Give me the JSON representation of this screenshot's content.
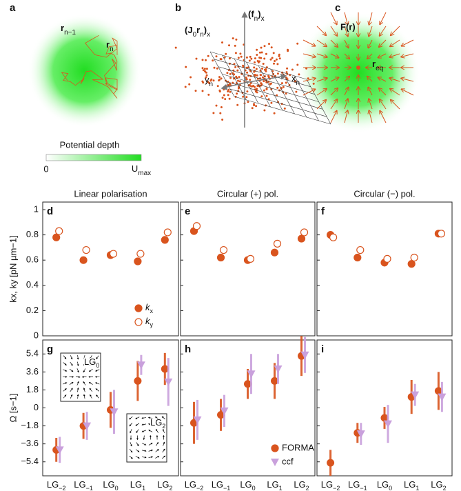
{
  "panel_a": {
    "letter": "a",
    "prev": {
      "main": "r",
      "sub": "n−1"
    },
    "curr": {
      "main": "r",
      "sub": "n"
    },
    "colorbar": {
      "title": "Potential depth",
      "low": "0",
      "high": {
        "main": "U",
        "sub": "max"
      }
    }
  },
  "panel_b": {
    "letter": "b",
    "jr": {
      "main": "(J",
      "sub": "0",
      "main2": "r",
      "sub2": "n",
      "main3": ")",
      "sub3": "x"
    },
    "f": {
      "main": "(f",
      "sub": "n",
      "main2": ")",
      "sub2": "x"
    },
    "y": {
      "main": "y",
      "sub": "n"
    },
    "x": {
      "main": "x",
      "sub": "n"
    }
  },
  "panel_c": {
    "letter": "c",
    "force": "F(r)",
    "eq": {
      "main": "r",
      "sub": "eq"
    }
  },
  "chart_data": [
    {
      "type": "scatter",
      "letter": "d",
      "title": "Linear polarisation",
      "ylabel": "kx, ky [pN µm−1]",
      "ylim": [
        0,
        1.06
      ],
      "yticks": [
        0,
        0.2,
        0.4,
        0.6,
        0.8,
        1
      ],
      "legend": "lower right",
      "series": [
        {
          "name": "kx",
          "color": "#d9541e",
          "marker": "filled",
          "values": [
            0.78,
            0.6,
            0.64,
            0.59,
            0.76
          ]
        },
        {
          "name": "ky",
          "color": "#d9541e",
          "marker": "open",
          "values": [
            0.83,
            0.68,
            0.65,
            0.65,
            0.82
          ]
        }
      ]
    },
    {
      "type": "scatter",
      "letter": "e",
      "title": "Circular (+) pol.",
      "ylim": [
        0,
        1.06
      ],
      "series": [
        {
          "name": "kx",
          "color": "#d9541e",
          "marker": "filled",
          "values": [
            0.83,
            0.62,
            0.6,
            0.66,
            0.77
          ]
        },
        {
          "name": "ky",
          "color": "#d9541e",
          "marker": "open",
          "values": [
            0.87,
            0.68,
            0.61,
            0.73,
            0.82
          ]
        }
      ]
    },
    {
      "type": "scatter",
      "letter": "f",
      "title": "Circular (−) pol.",
      "ylim": [
        0,
        1.06
      ],
      "series": [
        {
          "name": "kx",
          "color": "#d9541e",
          "marker": "filled",
          "values": [
            0.8,
            0.62,
            0.58,
            0.57,
            0.81
          ]
        },
        {
          "name": "ky",
          "color": "#d9541e",
          "marker": "open",
          "values": [
            0.78,
            0.68,
            0.61,
            0.62,
            0.81
          ]
        }
      ]
    },
    {
      "type": "errorbar",
      "letter": "g",
      "ylabel": "Ω [s−1]",
      "categories": [
        "LG−2",
        "LG−1",
        "LG0",
        "LG1",
        "LG2"
      ],
      "ylim": [
        -6.8,
        6.8
      ],
      "yticks": [
        {
          "value": -5.4,
          "label": "−5.4"
        },
        {
          "value": -3.6,
          "label": "−3.6"
        },
        {
          "value": -1.8,
          "label": "−1.8"
        },
        0,
        1.8,
        3.6,
        5.4
      ],
      "legend": "lower right",
      "insets": [
        "LG0",
        "LG2"
      ],
      "series": [
        {
          "name": "FORMA",
          "color": "#d9541e",
          "marker": "circle",
          "values": [
            -4.2,
            -1.8,
            -0.2,
            2.7,
            3.9
          ],
          "errors": [
            1.2,
            1.3,
            1.8,
            2.0,
            1.6
          ]
        },
        {
          "name": "ccf",
          "color": "#c9a0dc",
          "marker": "triangle",
          "values": [
            -4.2,
            -1.8,
            -0.4,
            4.3,
            2.6
          ],
          "errors": [
            1.3,
            1.4,
            2.2,
            1.0,
            2.4
          ]
        }
      ]
    },
    {
      "type": "errorbar",
      "letter": "h",
      "categories": [
        "LG−2",
        "LG−1",
        "LG0",
        "LG1",
        "LG2"
      ],
      "ylim": [
        -6.8,
        6.8
      ],
      "legend": "lower right",
      "series": [
        {
          "name": "FORMA",
          "color": "#d9541e",
          "marker": "circle",
          "values": [
            -1.5,
            -0.7,
            2.4,
            2.7,
            5.2
          ],
          "errors": [
            2.1,
            1.6,
            1.5,
            1.8,
            2.0
          ]
        },
        {
          "name": "ccf",
          "color": "#c9a0dc",
          "marker": "triangle",
          "values": [
            -1.2,
            -0.3,
            3.4,
            3.9,
            5.3
          ],
          "errors": [
            2.0,
            1.6,
            2.0,
            1.5,
            1.8
          ]
        }
      ]
    },
    {
      "type": "errorbar",
      "letter": "i",
      "categories": [
        "LG−2",
        "LG−1",
        "LG0",
        "LG1",
        "LG2"
      ],
      "ylim": [
        -6.8,
        6.8
      ],
      "series": [
        {
          "name": "FORMA",
          "color": "#d9541e",
          "marker": "circle",
          "values": [
            -5.5,
            -2.5,
            -1.0,
            1.1,
            1.7
          ],
          "errors": [
            1.3,
            1.0,
            1.1,
            1.7,
            1.9
          ]
        },
        {
          "name": "ccf",
          "color": "#c9a0dc",
          "marker": "triangle",
          "values": [
            null,
            -2.6,
            -1.6,
            1.3,
            1.1
          ],
          "errors": [
            null,
            1.1,
            1.9,
            1.1,
            1.5
          ]
        }
      ]
    }
  ]
}
